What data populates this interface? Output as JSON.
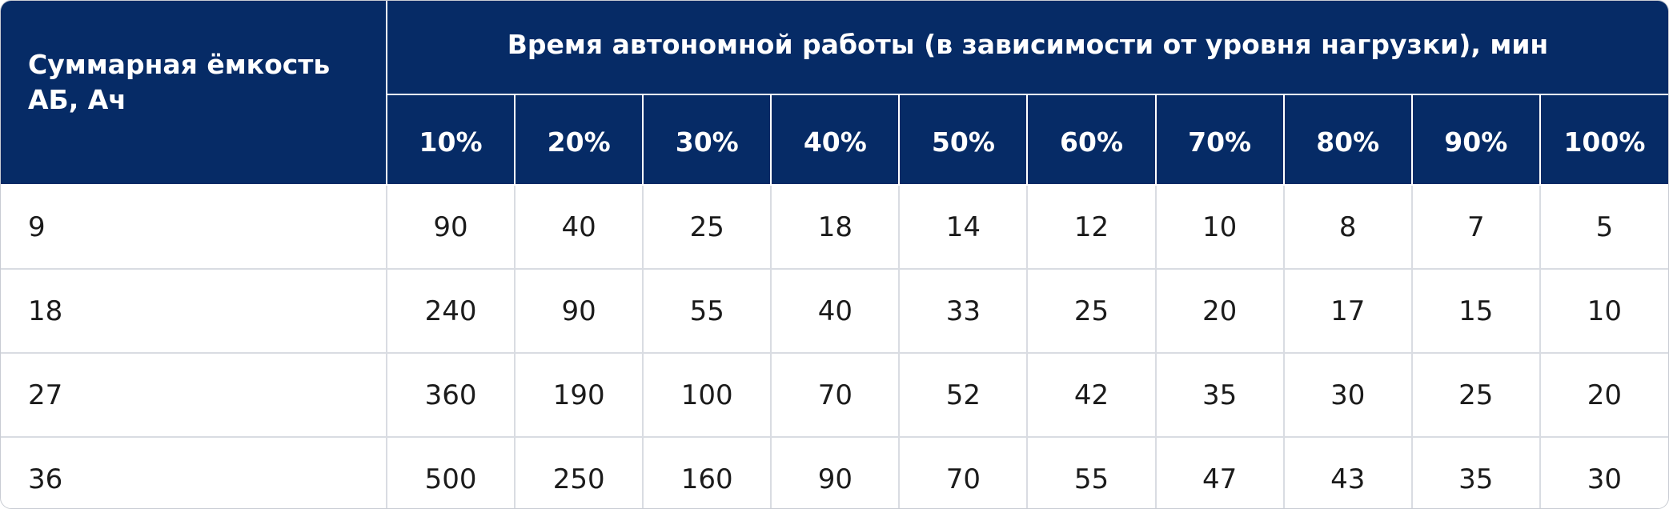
{
  "table": {
    "corner_label": "Суммарная ёмкость АБ, Ач",
    "group_label": "Время автономной работы (в зависимости от уровня нагрузки), мин",
    "load_levels": [
      "10%",
      "20%",
      "30%",
      "40%",
      "50%",
      "60%",
      "70%",
      "80%",
      "90%",
      "100%"
    ],
    "rows": [
      {
        "capacity": "9",
        "values": [
          "90",
          "40",
          "25",
          "18",
          "14",
          "12",
          "10",
          "8",
          "7",
          "5"
        ]
      },
      {
        "capacity": "18",
        "values": [
          "240",
          "90",
          "55",
          "40",
          "33",
          "25",
          "20",
          "17",
          "15",
          "10"
        ]
      },
      {
        "capacity": "27",
        "values": [
          "360",
          "190",
          "100",
          "70",
          "52",
          "42",
          "35",
          "30",
          "25",
          "20"
        ]
      },
      {
        "capacity": "36",
        "values": [
          "500",
          "250",
          "160",
          "90",
          "70",
          "55",
          "47",
          "43",
          "35",
          "30"
        ]
      }
    ],
    "header_bg": "#062b66",
    "header_text": "#ffffff",
    "grid_color": "#d9dce2"
  }
}
